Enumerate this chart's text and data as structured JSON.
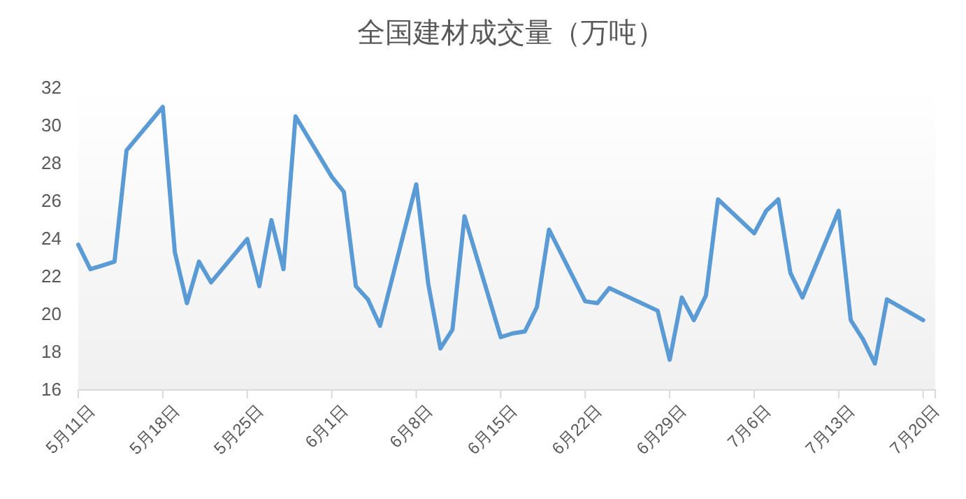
{
  "chart_data": {
    "type": "line",
    "title": "全国建材成交量（万吨）",
    "x": [
      "--05-11",
      "--05-12",
      "--05-13",
      "--05-14",
      "--05-15",
      "--05-18",
      "--05-19",
      "--05-20",
      "--05-21",
      "--05-22",
      "--05-25",
      "--05-26",
      "--05-27",
      "--05-28",
      "--05-29",
      "--06-01",
      "--06-02",
      "--06-03",
      "--06-04",
      "--06-05",
      "--06-08",
      "--06-09",
      "--06-10",
      "--06-11",
      "--06-12",
      "--06-15",
      "--06-16",
      "--06-17",
      "--06-18",
      "--06-19",
      "--06-22",
      "--06-23",
      "--06-24",
      "--06-28",
      "--06-29",
      "--06-30",
      "--07-01",
      "--07-02",
      "--07-03",
      "--07-06",
      "--07-07",
      "--07-08",
      "--07-09",
      "--07-10",
      "--07-13",
      "--07-14",
      "--07-15",
      "--07-16",
      "--07-17",
      "--07-20"
    ],
    "series": [
      {
        "color": "#5b9bd5",
        "values": [
          23.7,
          22.4,
          22.6,
          22.8,
          28.7,
          31.0,
          23.3,
          20.6,
          22.8,
          21.7,
          24.0,
          21.5,
          25.0,
          22.4,
          30.5,
          27.3,
          26.5,
          21.5,
          20.8,
          19.4,
          26.9,
          21.6,
          18.2,
          19.2,
          25.2,
          18.8,
          19.0,
          19.1,
          20.4,
          24.5,
          20.7,
          20.6,
          21.4,
          20.2,
          17.6,
          20.9,
          19.7,
          21.0,
          26.1,
          24.3,
          25.5,
          26.1,
          22.2,
          20.9,
          25.5,
          19.7,
          18.7,
          17.4,
          20.8,
          19.7
        ]
      }
    ],
    "xlim": [
      "--05-11",
      "--07-21"
    ],
    "xticks": [
      {
        "value": "--05-11",
        "label": "5月11日"
      },
      {
        "value": "--05-18",
        "label": "5月18日"
      },
      {
        "value": "--05-25",
        "label": "5月25日"
      },
      {
        "value": "--06-01",
        "label": "6月1日"
      },
      {
        "value": "--06-08",
        "label": "6月8日"
      },
      {
        "value": "--06-15",
        "label": "6月15日"
      },
      {
        "value": "--06-22",
        "label": "6月22日"
      },
      {
        "value": "--06-29",
        "label": "6月29日"
      },
      {
        "value": "--07-06",
        "label": "7月6日"
      },
      {
        "value": "--07-13",
        "label": "7月13日"
      },
      {
        "value": "--07-20",
        "label": "7月20日"
      }
    ],
    "ylim": [
      16,
      32
    ],
    "yticks": [
      16,
      18,
      20,
      22,
      24,
      26,
      28,
      30,
      32
    ],
    "grid": false,
    "marker": "none",
    "line_style": "solid"
  }
}
